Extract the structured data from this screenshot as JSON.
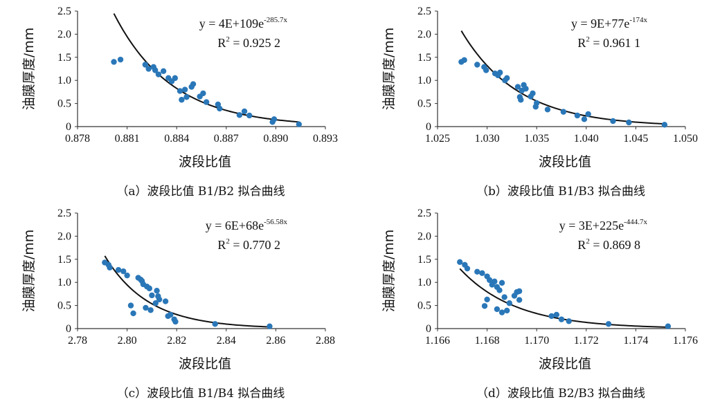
{
  "chart_data": [
    {
      "type": "scatter",
      "caption": "（a）波段比值 B1/B2 拟合曲线",
      "xlabel": "波段比值",
      "ylabel": "油膜厚度/mm",
      "equation": "y = 4E+109e-285.7x",
      "r2": "R2 = 0.925 2",
      "fit": {
        "a": 4e+109,
        "b": -285.7
      },
      "xlim": [
        0.878,
        0.893
      ],
      "ylim": [
        0,
        2.5
      ],
      "xticks": [
        0.878,
        0.881,
        0.884,
        0.887,
        0.89,
        0.893
      ],
      "xtick_labels": [
        "0.878",
        "0.881",
        "0.884",
        "0.887",
        "0.890",
        "0.893"
      ],
      "yticks": [
        0,
        0.5,
        1.0,
        1.5,
        2.0,
        2.5
      ],
      "ytick_labels": [
        "0",
        "0.5",
        "1.0",
        "1.5",
        "2.0",
        "2.5"
      ],
      "x": [
        0.8802,
        0.8806,
        0.8821,
        0.8823,
        0.8826,
        0.8827,
        0.8829,
        0.8832,
        0.8835,
        0.8837,
        0.8839,
        0.8842,
        0.8843,
        0.8845,
        0.8846,
        0.8849,
        0.885,
        0.8854,
        0.8856,
        0.8858,
        0.8865,
        0.8866,
        0.8878,
        0.8881,
        0.8884,
        0.8898,
        0.8899,
        0.8914
      ],
      "y": [
        1.4,
        1.45,
        1.34,
        1.25,
        1.29,
        1.22,
        1.13,
        1.2,
        1.05,
        0.98,
        1.05,
        0.77,
        0.58,
        0.8,
        0.64,
        0.86,
        0.92,
        0.65,
        0.72,
        0.53,
        0.48,
        0.39,
        0.25,
        0.33,
        0.24,
        0.1,
        0.16,
        0.05
      ]
    },
    {
      "type": "scatter",
      "caption": "（b）波段比值 B1/B3 拟合曲线",
      "xlabel": "波段比值",
      "ylabel": "油膜厚度/mm",
      "equation": "y = 9E+77e-174x",
      "r2": "R2 = 0.961 1",
      "fit": {
        "a": 9e+77,
        "b": -174
      },
      "xlim": [
        1.025,
        1.05
      ],
      "ylim": [
        0,
        2.5
      ],
      "xticks": [
        1.025,
        1.03,
        1.035,
        1.04,
        1.045,
        1.05
      ],
      "xtick_labels": [
        "1.025",
        "1.030",
        "1.035",
        "1.040",
        "1.045",
        "1.050"
      ],
      "yticks": [
        0,
        0.5,
        1.0,
        1.5,
        2.0,
        2.5
      ],
      "ytick_labels": [
        "0",
        "0.5",
        "1.0",
        "1.5",
        "2.0",
        "2.5"
      ],
      "x": [
        1.0274,
        1.0277,
        1.029,
        1.0297,
        1.0299,
        1.0308,
        1.0311,
        1.0313,
        1.0318,
        1.032,
        1.0331,
        1.0333,
        1.0334,
        1.0335,
        1.0337,
        1.0339,
        1.0344,
        1.0346,
        1.0349,
        1.035,
        1.0361,
        1.0377,
        1.0391,
        1.0398,
        1.0402,
        1.0427,
        1.0443,
        1.0479
      ],
      "y": [
        1.4,
        1.44,
        1.34,
        1.29,
        1.22,
        1.15,
        1.11,
        1.17,
        1.0,
        1.05,
        0.86,
        0.64,
        0.58,
        0.78,
        0.9,
        0.82,
        0.65,
        0.72,
        0.43,
        0.51,
        0.37,
        0.32,
        0.24,
        0.16,
        0.27,
        0.12,
        0.09,
        0.04
      ]
    },
    {
      "type": "scatter",
      "caption": "（c）波段比值 B1/B4 拟合曲线",
      "xlabel": "波段比值",
      "ylabel": "油膜厚度/mm",
      "equation": "y = 6E+68e-56.58x",
      "r2": "R2 = 0.770 2",
      "fit": {
        "a": 6e+68,
        "b": -56.58
      },
      "xlim": [
        2.78,
        2.88
      ],
      "ylim": [
        0,
        2.5
      ],
      "xticks": [
        2.78,
        2.8,
        2.82,
        2.84,
        2.86,
        2.88
      ],
      "xtick_labels": [
        "2.78",
        "2.80",
        "2.82",
        "2.84",
        "2.86",
        "2.88"
      ],
      "yticks": [
        0,
        0.5,
        1.0,
        1.5,
        2.0,
        2.5
      ],
      "ytick_labels": [
        "0",
        "0.5",
        "1.0",
        "1.5",
        "2.0",
        "2.5"
      ],
      "x": [
        2.791,
        2.7925,
        2.793,
        2.7965,
        2.7985,
        2.8,
        2.8015,
        2.8025,
        2.8045,
        2.8055,
        2.806,
        2.8065,
        2.8075,
        2.808,
        2.809,
        2.8095,
        2.81,
        2.8115,
        2.812,
        2.8125,
        2.813,
        2.8155,
        2.8165,
        2.8175,
        2.819,
        2.8195,
        2.8355,
        2.8575
      ],
      "y": [
        1.43,
        1.38,
        1.32,
        1.27,
        1.24,
        1.15,
        0.5,
        0.33,
        1.1,
        1.06,
        1.03,
        0.96,
        0.45,
        0.91,
        0.87,
        0.4,
        0.72,
        0.55,
        0.82,
        0.7,
        0.63,
        0.59,
        0.27,
        0.3,
        0.2,
        0.15,
        0.1,
        0.05
      ]
    },
    {
      "type": "scatter",
      "caption": "（d）波段比值 B2/B3 拟合曲线",
      "xlabel": "波段比值",
      "ylabel": "油膜厚度/mm",
      "equation": "y = 3E+225e-444.7x",
      "r2": "R2 = 0.869 8",
      "fit": {
        "a": 3e+225,
        "b": -444.7
      },
      "xlim": [
        1.166,
        1.176
      ],
      "ylim": [
        0,
        2.5
      ],
      "xticks": [
        1.166,
        1.168,
        1.17,
        1.172,
        1.174,
        1.176
      ],
      "xtick_labels": [
        "1.166",
        "1.168",
        "1.170",
        "1.172",
        "1.174",
        "1.176"
      ],
      "yticks": [
        0,
        0.5,
        1.0,
        1.5,
        2.0,
        2.5
      ],
      "ytick_labels": [
        "0",
        "0.5",
        "1.0",
        "1.5",
        "2.0",
        "2.5"
      ],
      "x": [
        1.1669,
        1.1671,
        1.1672,
        1.1676,
        1.1678,
        1.1679,
        1.168,
        1.168,
        1.1681,
        1.1682,
        1.1683,
        1.1684,
        1.1684,
        1.1685,
        1.1686,
        1.1686,
        1.1687,
        1.1688,
        1.1689,
        1.1691,
        1.1692,
        1.1693,
        1.1693,
        1.1706,
        1.1708,
        1.171,
        1.1713,
        1.1729,
        1.1753
      ],
      "y": [
        1.44,
        1.38,
        1.3,
        1.23,
        1.2,
        0.49,
        1.13,
        0.63,
        1.05,
        0.95,
        1.02,
        0.9,
        0.42,
        0.83,
        0.35,
        0.99,
        0.68,
        0.39,
        0.55,
        0.71,
        0.79,
        0.62,
        0.81,
        0.27,
        0.3,
        0.2,
        0.16,
        0.1,
        0.05
      ]
    }
  ]
}
